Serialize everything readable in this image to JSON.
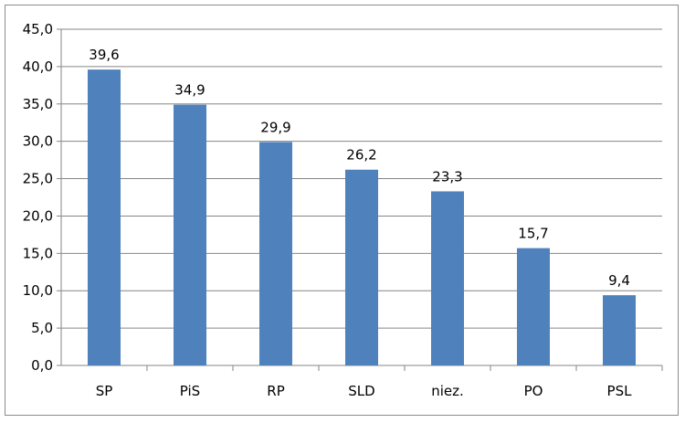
{
  "chart_data": {
    "type": "bar",
    "categories": [
      "SP",
      "PiS",
      "RP",
      "SLD",
      "niez.",
      "PO",
      "PSL"
    ],
    "values": [
      39.6,
      34.9,
      29.9,
      26.2,
      23.3,
      15.7,
      9.4
    ],
    "value_labels": [
      "39,6",
      "34,9",
      "29,9",
      "26,2",
      "23,3",
      "15,7",
      "9,4"
    ],
    "yticks": [
      "0,0",
      "5,0",
      "10,0",
      "15,0",
      "20,0",
      "25,0",
      "30,0",
      "35,0",
      "40,0",
      "45,0"
    ],
    "ylim": [
      0,
      45
    ],
    "ystep": 5,
    "grid": true,
    "legend": "none",
    "bar_color": "#4f81bd",
    "grid_color": "#868686"
  }
}
